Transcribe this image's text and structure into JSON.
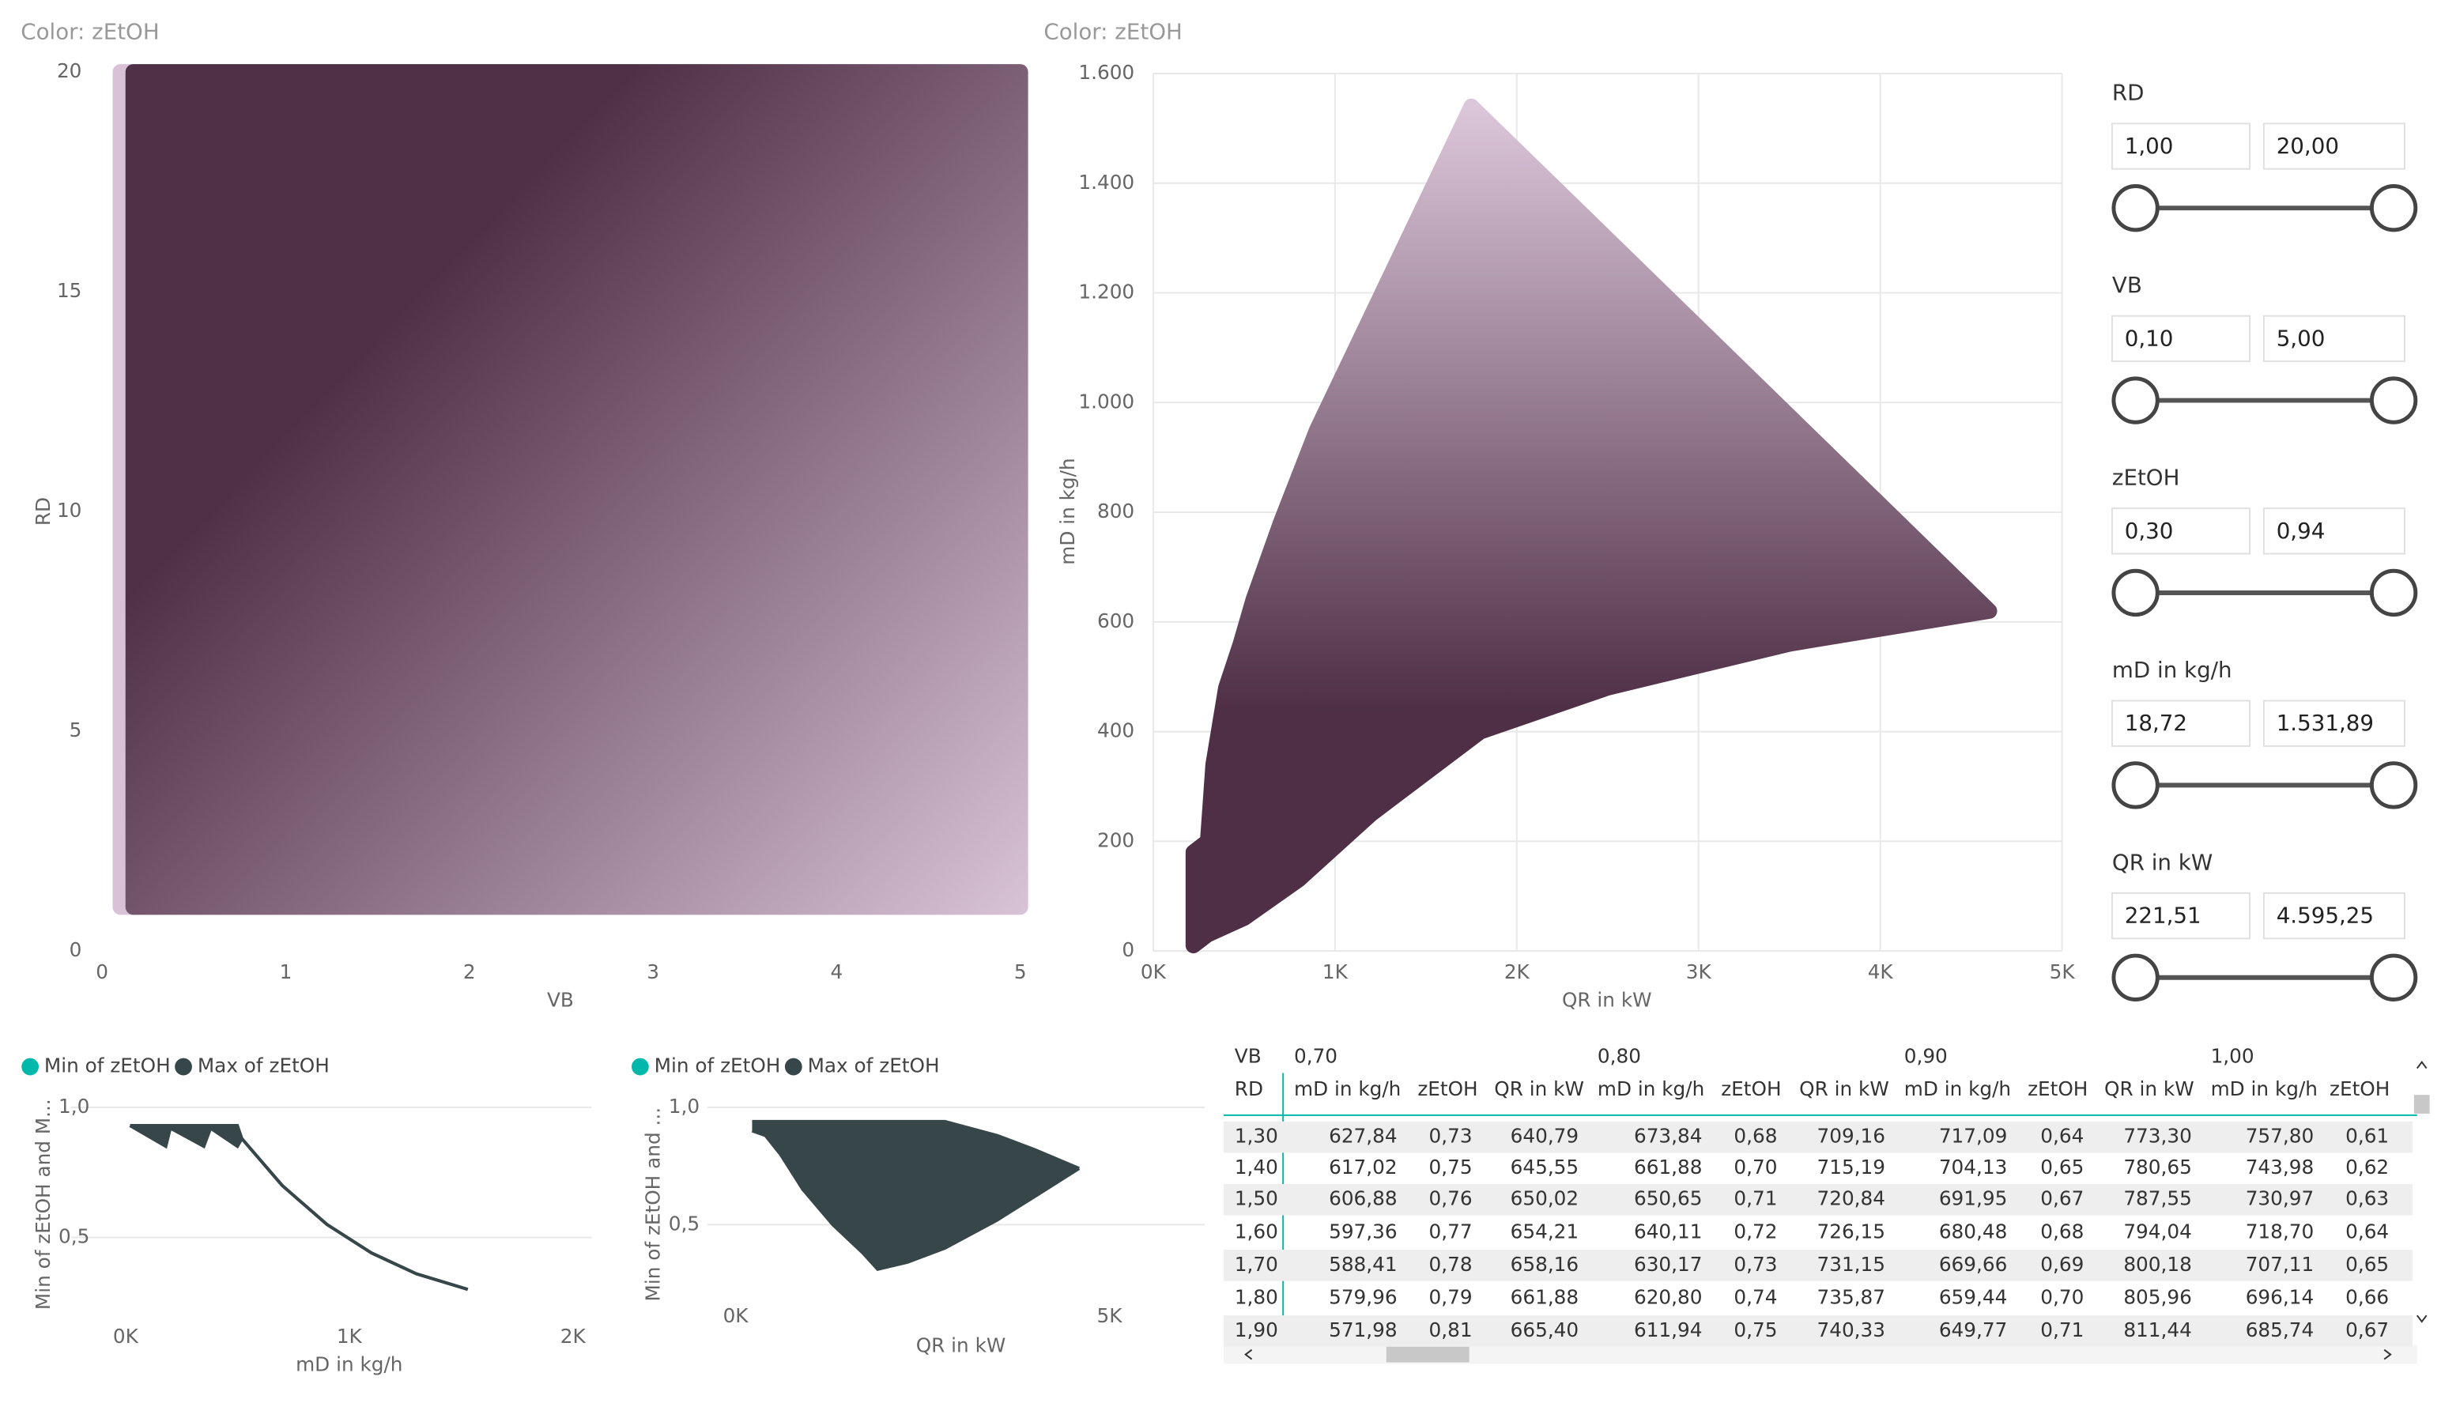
{
  "chart_data": [
    {
      "type": "scatter",
      "title": "Color: zEtOH",
      "x_label": "VB",
      "y_label": "RD",
      "xlim": [
        0,
        5
      ],
      "ylim": [
        0,
        20
      ],
      "xticks": [
        0,
        1,
        2,
        3,
        4,
        5
      ],
      "yticks": [
        0,
        5,
        10,
        15,
        20
      ],
      "grid": false,
      "regions": [
        {
          "x": [
            0.1,
            0.17,
            0.17,
            0.1
          ],
          "y": [
            1,
            1,
            20,
            20
          ],
          "colors": [
            "#d9c2d8",
            "#d9c2d8"
          ]
        },
        {
          "x": [
            0.17,
            5,
            5,
            0.17
          ],
          "y": [
            1,
            1,
            20,
            20
          ],
          "colors": [
            "#4f3047",
            "#dcc6da"
          ]
        }
      ]
    },
    {
      "type": "scatter",
      "title": "Color: zEtOH",
      "x_label": "QR in kW",
      "y_label": "mD in kg/h",
      "xlim": [
        0,
        5000
      ],
      "ylim": [
        0,
        1600
      ],
      "xticks": [
        {
          "value": 0,
          "label": "0K"
        },
        {
          "value": 1000,
          "label": "1K"
        },
        {
          "value": 2000,
          "label": "2K"
        },
        {
          "value": 3000,
          "label": "3K"
        },
        {
          "value": 4000,
          "label": "4K"
        },
        {
          "value": 5000,
          "label": "5K"
        }
      ],
      "yticks": [
        0,
        200,
        400,
        600,
        800,
        {
          "value": 1000,
          "label": "1.000"
        },
        {
          "value": 1200,
          "label": "1.200"
        },
        {
          "value": 1400,
          "label": "1.400"
        },
        {
          "value": 1600,
          "label": "1.600"
        }
      ],
      "grid": true,
      "regions": [
        {
          "x": [
            221,
            221,
            300,
            330,
            400,
            480,
            550,
            700,
            900,
            1750,
            4600,
            3500,
            2500,
            1800,
            1200,
            800,
            500,
            300
          ],
          "y": [
            10,
            180,
            200,
            340,
            480,
            560,
            640,
            780,
            950,
            1540,
            620,
            560,
            480,
            400,
            250,
            130,
            60,
            30
          ],
          "colors": [
            "#4e2f45",
            "#dcc6da"
          ]
        }
      ]
    },
    {
      "type": "line",
      "x_label": "mD in kg/h",
      "y_label": "Min of zEtOH and M...",
      "xlim": [
        0,
        2000
      ],
      "ylim": [
        0.2,
        1.0
      ],
      "xticks": [
        {
          "value": 0,
          "label": "0K"
        },
        {
          "value": 1000,
          "label": "1K"
        },
        {
          "value": 2000,
          "label": "2K"
        }
      ],
      "yticks": [
        {
          "value": 0.5,
          "label": "0,5"
        },
        {
          "value": 1.0,
          "label": "1,0"
        }
      ],
      "grid": true,
      "series": [
        {
          "name": "Min of zEtOH",
          "color": "#01b8aa",
          "x": [
            20,
            180,
            200,
            350,
            380,
            500,
            520,
            700,
            900,
            1100,
            1300,
            1530
          ],
          "values": [
            0.93,
            0.85,
            0.92,
            0.85,
            0.92,
            0.85,
            0.88,
            0.7,
            0.55,
            0.44,
            0.36,
            0.3
          ]
        },
        {
          "name": "Max of zEtOH",
          "color": "#374649",
          "x": [
            20,
            500,
            520,
            700,
            900,
            1100,
            1300,
            1530
          ],
          "values": [
            0.93,
            0.93,
            0.88,
            0.7,
            0.55,
            0.44,
            0.36,
            0.3
          ]
        }
      ]
    },
    {
      "type": "line",
      "x_label": "QR in kW",
      "y_label": "Min of zEtOH and ...",
      "xlim": [
        0,
        5000
      ],
      "ylim": [
        0.2,
        1.0
      ],
      "xticks": [
        {
          "value": 0,
          "label": "0K"
        },
        {
          "value": 5000,
          "label": "5K"
        }
      ],
      "yticks": [
        {
          "value": 0.5,
          "label": "0,5"
        },
        {
          "value": 1.0,
          "label": "1,0"
        }
      ],
      "grid": true,
      "series": [
        {
          "name": "Min of zEtOH",
          "color": "#01b8aa",
          "x": [
            221,
            400,
            600,
            900,
            1300,
            1700,
            1900,
            2300,
            2800,
            3500,
            4000,
            4595
          ],
          "values": [
            0.9,
            0.88,
            0.8,
            0.65,
            0.5,
            0.38,
            0.31,
            0.34,
            0.4,
            0.52,
            0.62,
            0.74
          ]
        },
        {
          "name": "Max of zEtOH",
          "color": "#374649",
          "x": [
            221,
            500,
            1000,
            2800,
            3500,
            4000,
            4595
          ],
          "values": [
            0.94,
            0.94,
            0.94,
            0.94,
            0.88,
            0.82,
            0.74
          ]
        }
      ]
    }
  ],
  "slicers": [
    {
      "label": "RD",
      "min": "1,00",
      "max": "20,00"
    },
    {
      "label": "VB",
      "min": "0,10",
      "max": "5,00"
    },
    {
      "label": "zEtOH",
      "min": "0,30",
      "max": "0,94"
    },
    {
      "label": "mD in kg/h",
      "min": "18,72",
      "max": "1.531,89"
    },
    {
      "label": "QR in kW",
      "min": "221,51",
      "max": "4.595,25"
    }
  ],
  "table": {
    "group_label": "VB",
    "row_label": "RD",
    "groups": [
      "0,70",
      "0,80",
      "0,90",
      "1,00"
    ],
    "columns": [
      "mD in kg/h",
      "zEtOH",
      "QR in kW",
      "mD in kg/h",
      "zEtOH",
      "QR in kW",
      "mD in kg/h",
      "zEtOH",
      "QR in kW",
      "mD in kg/h",
      "zEtOH"
    ],
    "rows": [
      {
        "rd": "1,30",
        "cells": [
          "627,84",
          "0,73",
          "640,79",
          "673,84",
          "0,68",
          "709,16",
          "717,09",
          "0,64",
          "773,30",
          "757,80",
          "0,61"
        ]
      },
      {
        "rd": "1,40",
        "cells": [
          "617,02",
          "0,75",
          "645,55",
          "661,88",
          "0,70",
          "715,19",
          "704,13",
          "0,65",
          "780,65",
          "743,98",
          "0,62"
        ]
      },
      {
        "rd": "1,50",
        "cells": [
          "606,88",
          "0,76",
          "650,02",
          "650,65",
          "0,71",
          "720,84",
          "691,95",
          "0,67",
          "787,55",
          "730,97",
          "0,63"
        ]
      },
      {
        "rd": "1,60",
        "cells": [
          "597,36",
          "0,77",
          "654,21",
          "640,11",
          "0,72",
          "726,15",
          "680,48",
          "0,68",
          "794,04",
          "718,70",
          "0,64"
        ]
      },
      {
        "rd": "1,70",
        "cells": [
          "588,41",
          "0,78",
          "658,16",
          "630,17",
          "0,73",
          "731,15",
          "669,66",
          "0,69",
          "800,18",
          "707,11",
          "0,65"
        ]
      },
      {
        "rd": "1,80",
        "cells": [
          "579,96",
          "0,79",
          "661,88",
          "620,80",
          "0,74",
          "735,87",
          "659,44",
          "0,70",
          "805,96",
          "696,14",
          "0,66"
        ]
      },
      {
        "rd": "1,90",
        "cells": [
          "571,98",
          "0,81",
          "665,40",
          "611,94",
          "0,75",
          "740,33",
          "649,77",
          "0,71",
          "811,44",
          "685,74",
          "0,67"
        ]
      }
    ]
  }
}
